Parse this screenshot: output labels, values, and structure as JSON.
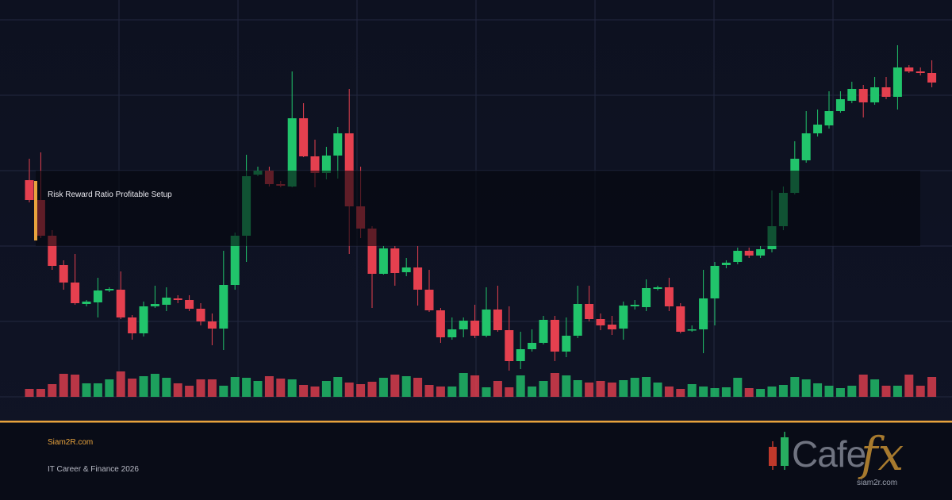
{
  "chart_data": {
    "type": "candlestick",
    "annotation": "Risk Reward Ratio Profitable Setup",
    "up_color": "#21c46b",
    "down_color": "#e5404f",
    "ylim": [
      0,
      475
    ],
    "vlim": [
      0,
      100
    ],
    "open": [
      273,
      248,
      203,
      166,
      144,
      117,
      119,
      134,
      135,
      100,
      80,
      114,
      116,
      124,
      122,
      111,
      95,
      86,
      141,
      203,
      280,
      285,
      268,
      265,
      351,
      303,
      282,
      304,
      332,
      240,
      212,
      155,
      187,
      157,
      163,
      135,
      109,
      75,
      85,
      96,
      77,
      110,
      84,
      45,
      60,
      68,
      97,
      57,
      77,
      117,
      98,
      91,
      86,
      114,
      113,
      136,
      138,
      114,
      84,
      85,
      124,
      166,
      170,
      184,
      178,
      186,
      215,
      257,
      298,
      332,
      342,
      360,
      373,
      388,
      371,
      390,
      378,
      415,
      410,
      408
    ],
    "high": [
      300,
      308,
      210,
      172,
      180,
      122,
      150,
      138,
      158,
      103,
      120,
      140,
      138,
      128,
      128,
      118,
      105,
      184,
      207,
      305,
      290,
      290,
      272,
      410,
      370,
      324,
      315,
      340,
      388,
      290,
      215,
      190,
      190,
      175,
      190,
      160,
      112,
      100,
      100,
      116,
      138,
      140,
      114,
      82,
      85,
      102,
      102,
      100,
      140,
      140,
      105,
      102,
      120,
      122,
      148,
      140,
      150,
      118,
      90,
      160,
      170,
      172,
      188,
      188,
      190,
      260,
      265,
      322,
      360,
      362,
      385,
      385,
      397,
      393,
      403,
      403,
      443,
      418,
      415,
      424
    ],
    "low": [
      245,
      200,
      160,
      135,
      116,
      114,
      100,
      132,
      98,
      72,
      76,
      112,
      108,
      118,
      108,
      90,
      65,
      59,
      135,
      170,
      278,
      265,
      264,
      264,
      302,
      264,
      274,
      275,
      180,
      200,
      112,
      154,
      140,
      152,
      115,
      107,
      68,
      72,
      75,
      74,
      75,
      82,
      33,
      35,
      57,
      66,
      45,
      50,
      74,
      95,
      84,
      78,
      72,
      110,
      108,
      134,
      108,
      80,
      82,
      55,
      90,
      162,
      167,
      175,
      175,
      182,
      210,
      255,
      295,
      328,
      338,
      358,
      370,
      352,
      368,
      375,
      362,
      408,
      405,
      390
    ],
    "close": [
      248,
      203,
      165,
      144,
      118,
      120,
      134,
      136,
      100,
      80,
      114,
      117,
      125,
      122,
      111,
      95,
      86,
      141,
      203,
      278,
      285,
      268,
      266,
      351,
      303,
      282,
      304,
      332,
      240,
      212,
      155,
      187,
      156,
      163,
      135,
      109,
      75,
      85,
      96,
      77,
      110,
      84,
      45,
      60,
      68,
      97,
      57,
      77,
      117,
      98,
      90,
      85,
      115,
      116,
      137,
      138,
      114,
      82,
      85,
      124,
      165,
      169,
      184,
      178,
      186,
      215,
      257,
      300,
      332,
      343,
      360,
      375,
      388,
      371,
      390,
      378,
      415,
      410,
      408,
      396
    ],
    "volume": [
      10,
      10,
      16,
      29,
      28,
      17,
      17,
      22,
      32,
      23,
      26,
      29,
      24,
      17,
      14,
      22,
      22,
      14,
      25,
      24,
      20,
      26,
      23,
      22,
      15,
      13,
      20,
      25,
      18,
      16,
      19,
      24,
      28,
      26,
      24,
      15,
      13,
      13,
      30,
      27,
      12,
      20,
      12,
      27,
      13,
      20,
      30,
      27,
      21,
      18,
      20,
      18,
      21,
      24,
      25,
      18,
      13,
      10,
      16,
      13,
      11,
      12,
      24,
      11,
      10,
      13,
      15,
      25,
      22,
      17,
      14,
      11,
      14,
      28,
      22,
      14,
      14,
      28,
      14,
      25
    ]
  },
  "footer": {
    "site": "Siam2R.com",
    "tagline": "IT Career & Finance 2026"
  },
  "logo": {
    "brand": "Cafe",
    "suffix": "fx",
    "url": "siam2r.com"
  }
}
